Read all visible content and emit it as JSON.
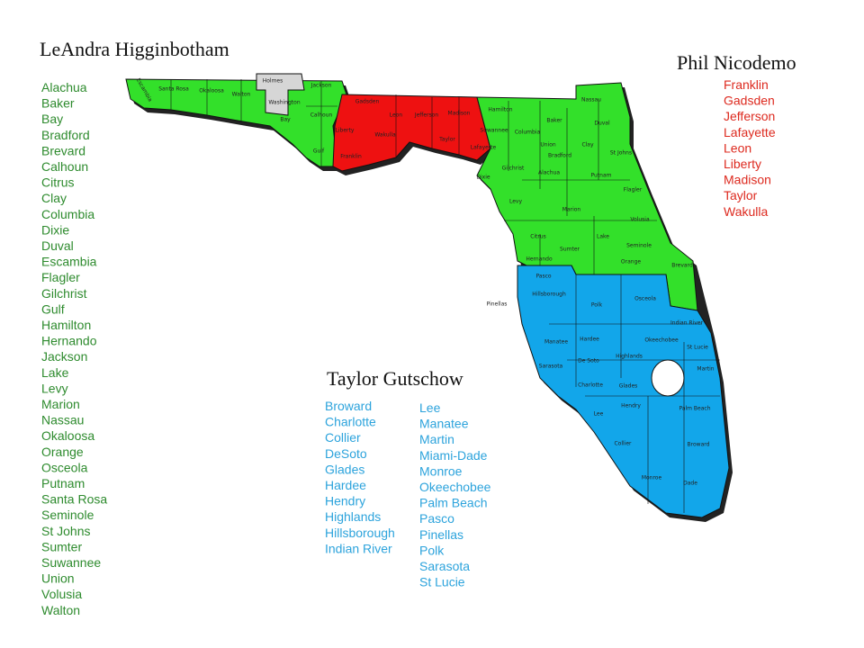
{
  "reps": [
    {
      "name": "LeAndra Higginbotham",
      "columns": [
        [
          "Alachua",
          "Baker",
          "Bay",
          "Bradford",
          "Brevard",
          "Calhoun",
          "Citrus",
          "Clay",
          "Columbia",
          "Dixie",
          "Duval",
          "Escambia",
          "Flagler",
          "Gilchrist",
          "Gulf",
          "Hamilton",
          "Hernando",
          "Jackson",
          "Lake",
          "Levy",
          "Marion",
          "Nassau",
          "Okaloosa",
          "Orange",
          "Osceola",
          "Putnam",
          "Santa Rosa",
          "Seminole",
          "St Johns",
          "Sumter",
          "Suwannee",
          "Union",
          "Volusia",
          "Walton"
        ]
      ]
    },
    {
      "name": "Phil Nicodemo",
      "columns": [
        [
          "Franklin",
          "Gadsden",
          "Jefferson",
          "Lafayette",
          "Leon",
          "Liberty",
          "Madison",
          "Taylor",
          "Wakulla"
        ]
      ]
    },
    {
      "name": "Taylor Gutschow",
      "columns": [
        [
          "Broward",
          "Charlotte",
          "Collier",
          "DeSoto",
          "Glades",
          "Hardee",
          "Hendry",
          "Highlands",
          "Hillsborough",
          "Indian River"
        ],
        [
          "Lee",
          "Manatee",
          "Martin",
          "Miami-Dade",
          "Monroe",
          "Okeechobee",
          "Palm Beach",
          "Pasco",
          "Pinellas",
          "Polk",
          "Sarasota",
          "St Lucie"
        ]
      ]
    }
  ],
  "map": {
    "labels": [
      "Escambia",
      "Santa Rosa",
      "Okaloosa",
      "Walton",
      "Holmes",
      "Washington",
      "Jackson",
      "Bay",
      "Calhoun",
      "Gulf",
      "Gadsden",
      "Liberty",
      "Franklin",
      "Leon",
      "Wakulla",
      "Jefferson",
      "Madison",
      "Taylor",
      "Lafayette",
      "Hamilton",
      "Suwannee",
      "Columbia",
      "Baker",
      "Nassau",
      "Duval",
      "Union",
      "Bradford",
      "Clay",
      "St Johns",
      "Gilchrist",
      "Alachua",
      "Dixie",
      "Putnam",
      "Flagler",
      "Levy",
      "Marion",
      "Volusia",
      "Citrus",
      "Lake",
      "Seminole",
      "Sumter",
      "Orange",
      "Brevard",
      "Hernando",
      "Pasco",
      "Hillsborough",
      "Pinellas",
      "Polk",
      "Osceola",
      "Indian River",
      "Manatee",
      "Hardee",
      "Okeechobee",
      "St Lucie",
      "Highlands",
      "De Soto",
      "Sarasota",
      "Martin",
      "Charlotte",
      "Glades",
      "Hendry",
      "Palm Beach",
      "Lee",
      "Collier",
      "Broward",
      "Monroe",
      "Dade"
    ]
  }
}
